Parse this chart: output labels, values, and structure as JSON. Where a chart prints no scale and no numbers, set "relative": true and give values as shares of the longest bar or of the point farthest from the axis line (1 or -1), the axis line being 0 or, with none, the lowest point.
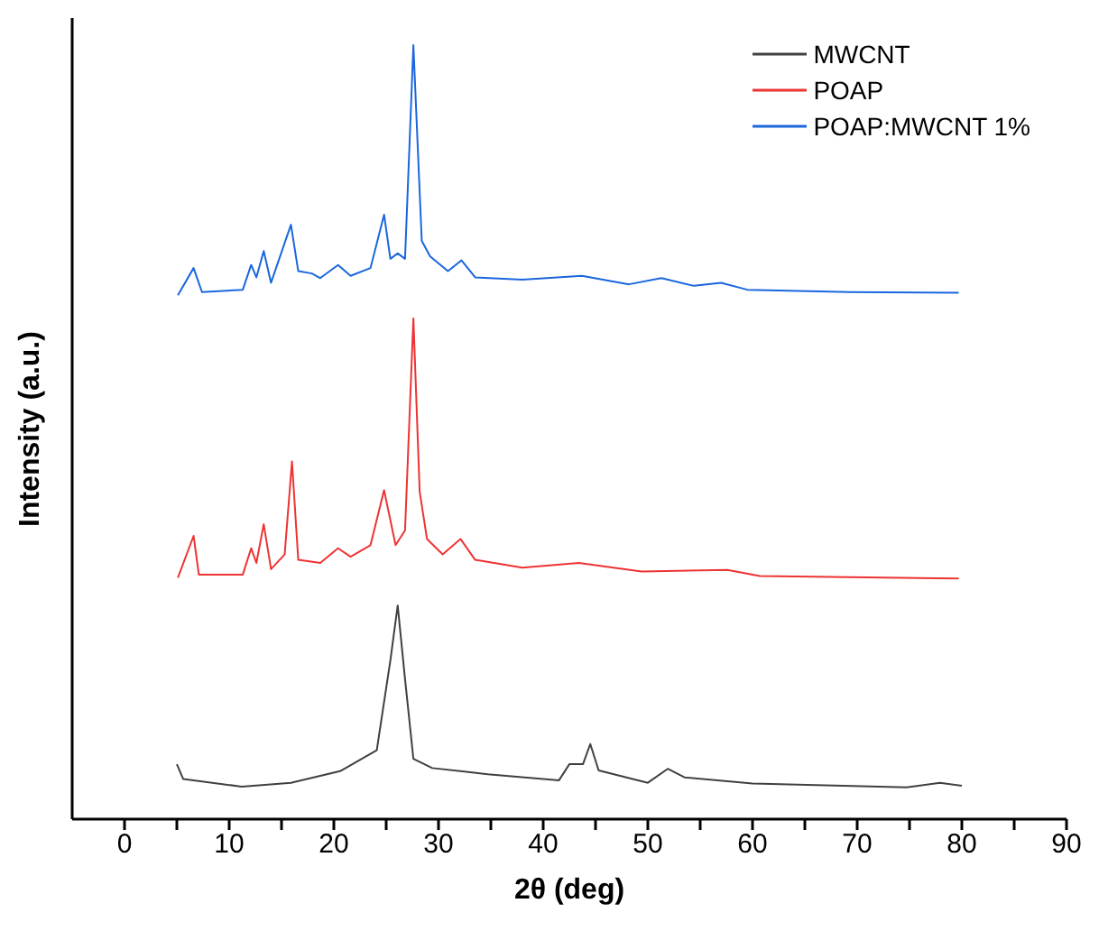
{
  "chart_data": {
    "type": "line",
    "xlabel": "2θ (deg)",
    "ylabel": "Intensity (a.u.)",
    "relative": true,
    "xlim": [
      -5,
      90
    ],
    "xticks": [
      0,
      {
        "value": 5,
        "label": null
      },
      10,
      {
        "value": 15,
        "label": null
      },
      20,
      {
        "value": 25,
        "label": null
      },
      30,
      {
        "value": 35,
        "label": null
      },
      40,
      {
        "value": 45,
        "label": null
      },
      50,
      {
        "value": 55,
        "label": null
      },
      60,
      {
        "value": 65,
        "label": null
      },
      70,
      {
        "value": 75,
        "label": null
      },
      80,
      {
        "value": 85,
        "label": null
      },
      90
    ],
    "legend": "top right",
    "grid": false,
    "marker": "none",
    "line_style": "solid",
    "series": [
      {
        "name": "MWCNT",
        "color": "#404040",
        "x": [
          5.0,
          5.6,
          11.2,
          15.9,
          20.6,
          24.1,
          25.4,
          26.1,
          26.8,
          27.6,
          29.4,
          34.7,
          41.5,
          42.5,
          43.8,
          44.5,
          45.3,
          50.0,
          51.9,
          53.5,
          60.0,
          74.7,
          77.9,
          80.0
        ],
        "values": [
          0.071,
          0.052,
          0.042,
          0.047,
          0.062,
          0.089,
          0.205,
          0.276,
          0.181,
          0.078,
          0.066,
          0.058,
          0.05,
          0.071,
          0.071,
          0.097,
          0.063,
          0.047,
          0.065,
          0.054,
          0.046,
          0.041,
          0.047,
          0.043
        ]
      },
      {
        "name": "POAP",
        "color": "#ee3333",
        "x": [
          5.1,
          6.6,
          7.1,
          11.3,
          12.1,
          12.6,
          13.3,
          14.0,
          15.3,
          16.0,
          16.6,
          18.7,
          20.4,
          21.6,
          23.5,
          24.8,
          25.9,
          26.8,
          27.6,
          28.2,
          28.9,
          30.4,
          32.1,
          33.5,
          38.0,
          43.4,
          49.4,
          57.6,
          60.7,
          79.7
        ],
        "values": [
          0.312,
          0.366,
          0.316,
          0.316,
          0.35,
          0.331,
          0.381,
          0.323,
          0.342,
          0.462,
          0.335,
          0.331,
          0.35,
          0.339,
          0.354,
          0.425,
          0.354,
          0.373,
          0.647,
          0.423,
          0.362,
          0.342,
          0.362,
          0.335,
          0.325,
          0.331,
          0.32,
          0.322,
          0.314,
          0.311
        ]
      },
      {
        "name": "POAP:MWCNT 1%",
        "color": "#1a66dd",
        "x": [
          5.1,
          6.6,
          7.4,
          11.3,
          12.1,
          12.6,
          13.3,
          14.0,
          15.9,
          16.6,
          17.9,
          18.7,
          20.4,
          21.6,
          23.5,
          24.8,
          25.4,
          26.1,
          26.8,
          27.6,
          28.4,
          29.2,
          30.9,
          32.2,
          33.5,
          38.0,
          43.7,
          48.2,
          51.3,
          54.4,
          57.0,
          59.5,
          69.2,
          79.7
        ],
        "values": [
          0.677,
          0.712,
          0.681,
          0.684,
          0.716,
          0.7,
          0.734,
          0.693,
          0.768,
          0.708,
          0.705,
          0.699,
          0.716,
          0.702,
          0.712,
          0.781,
          0.724,
          0.731,
          0.724,
          1.0,
          0.747,
          0.727,
          0.708,
          0.722,
          0.7,
          0.697,
          0.702,
          0.691,
          0.699,
          0.689,
          0.693,
          0.684,
          0.681,
          0.68
        ]
      }
    ]
  }
}
